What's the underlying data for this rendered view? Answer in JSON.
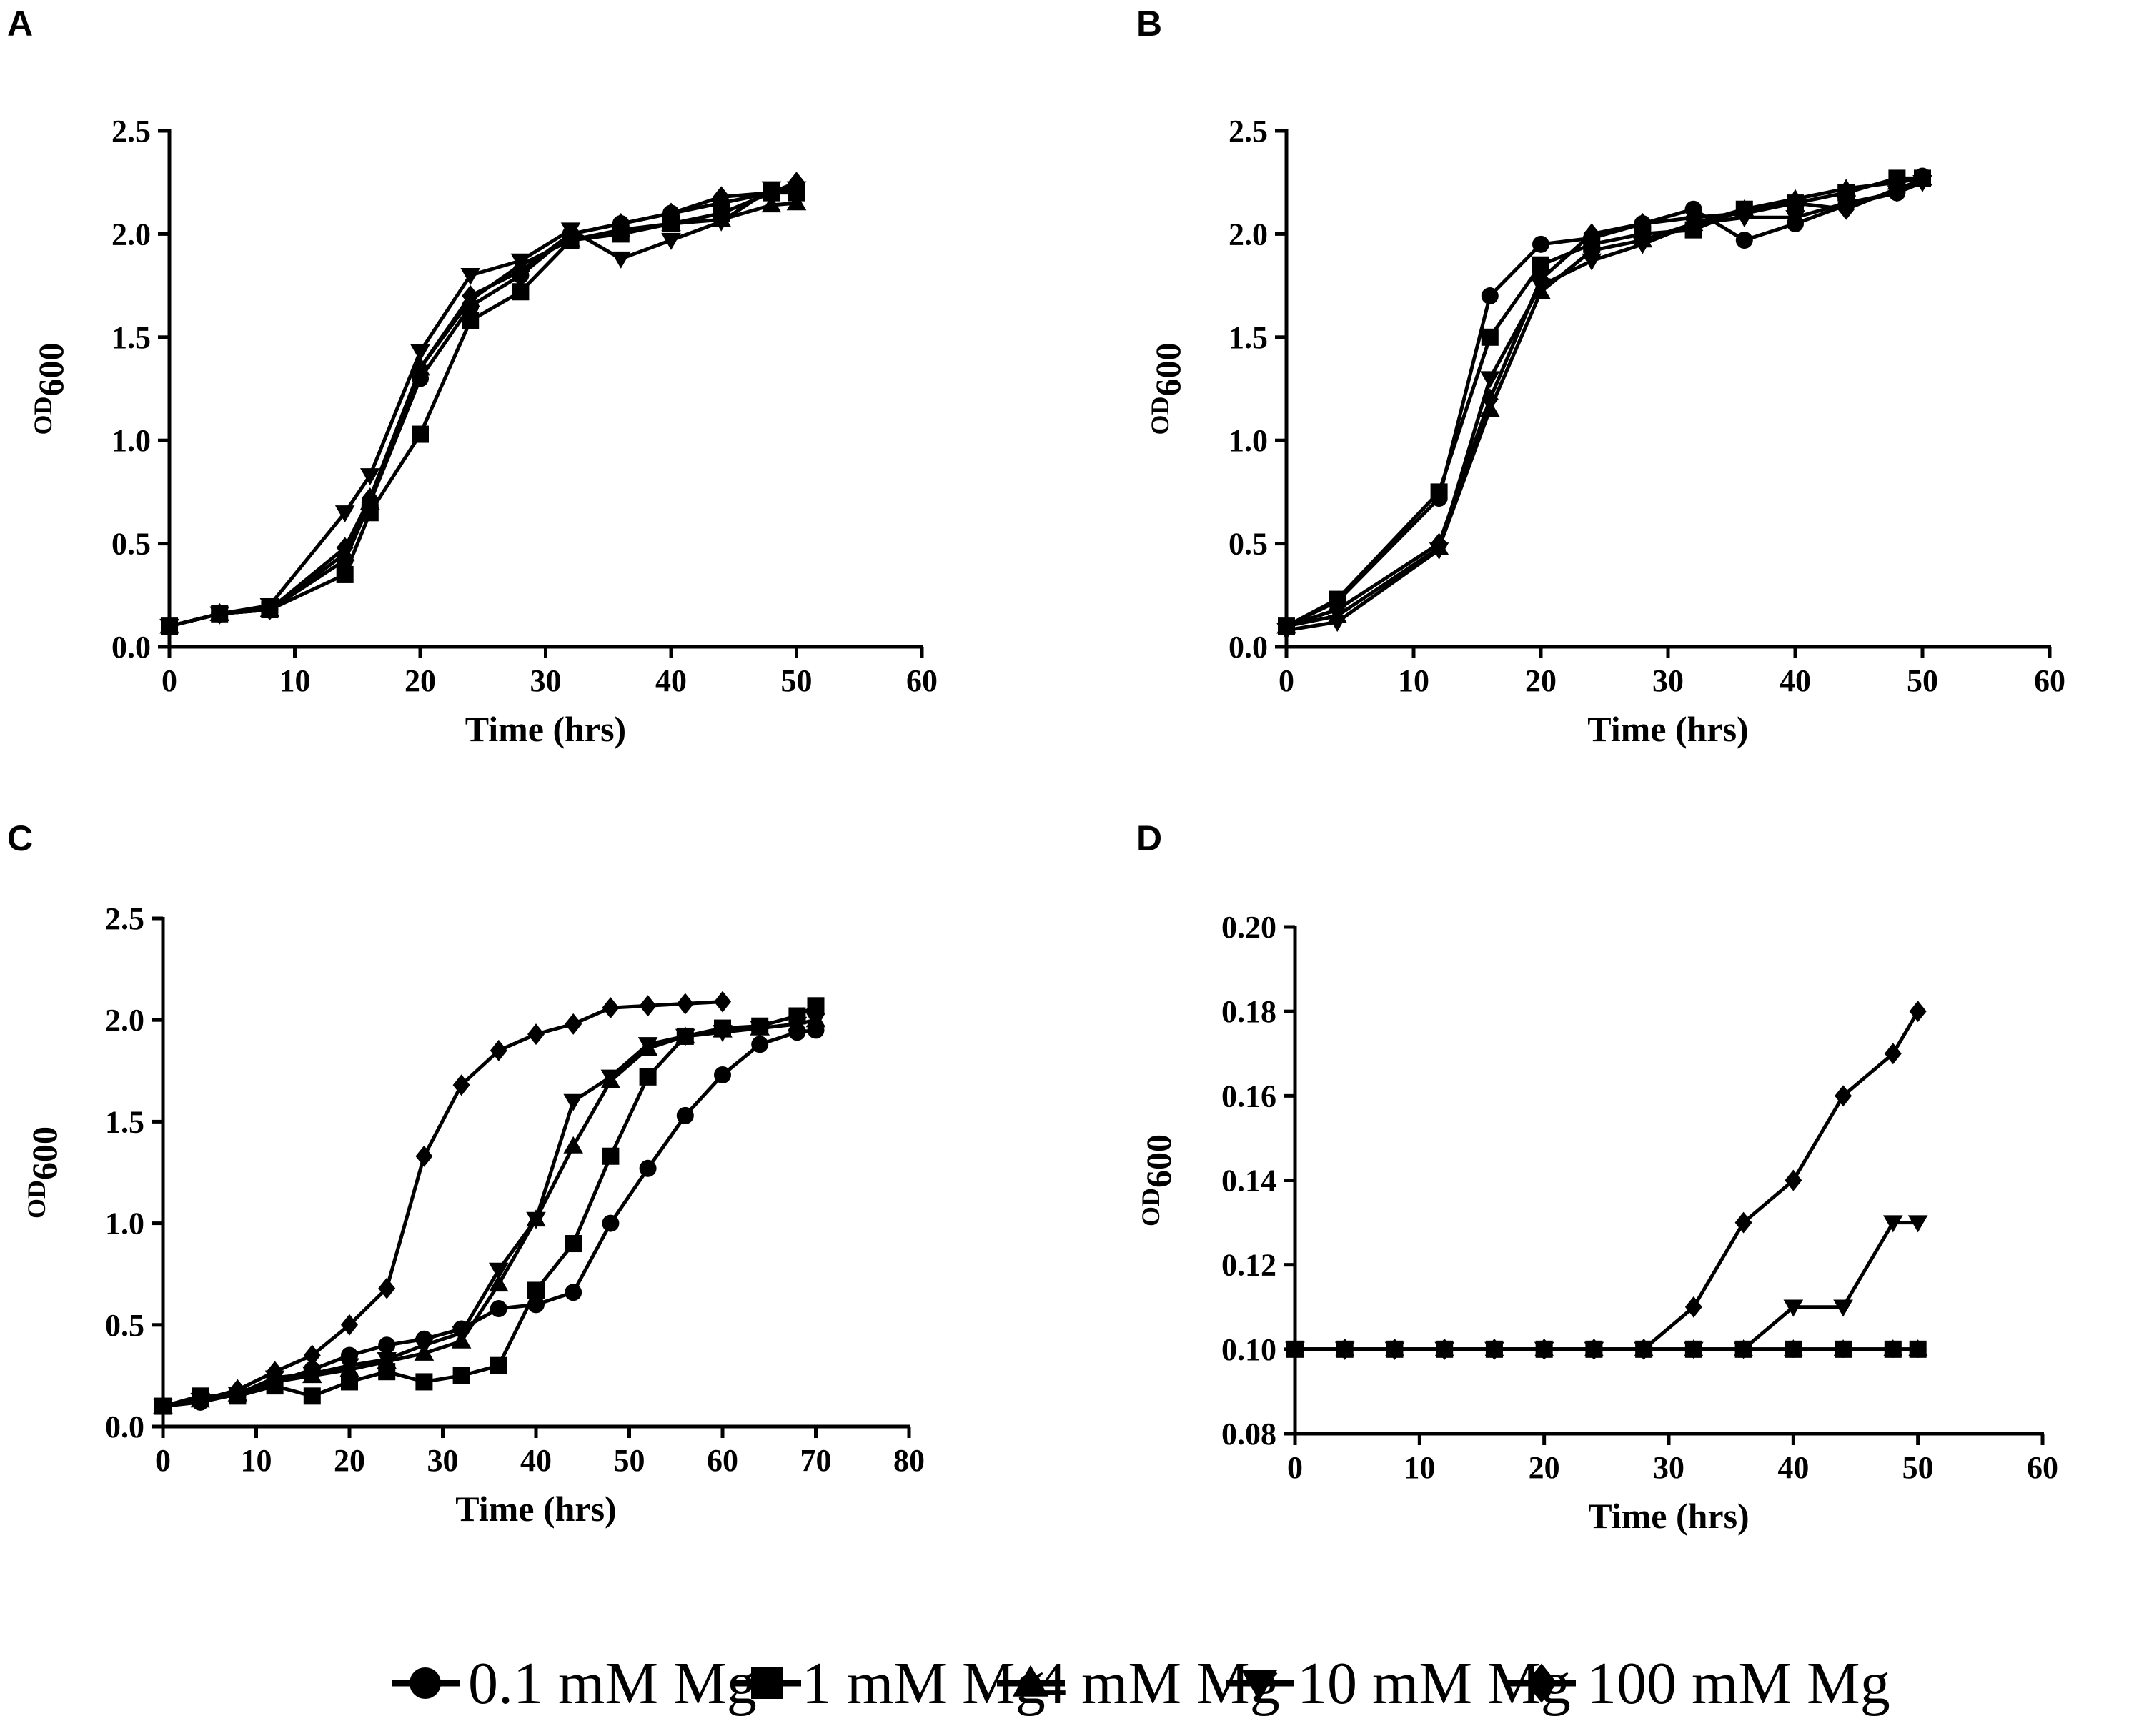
{
  "legend": [
    {
      "label": "0.1 mM Mg",
      "marker": "circle"
    },
    {
      "label": "1 mM Mg",
      "marker": "square"
    },
    {
      "label": "4 mM Mg",
      "marker": "triangle-up"
    },
    {
      "label": "10 mM Mg",
      "marker": "triangle-down"
    },
    {
      "label": "100 mM Mg",
      "marker": "diamond"
    }
  ],
  "chart_data": [
    {
      "panel": "A",
      "type": "line",
      "xlabel": "Time (hrs)",
      "ylabel_main": "OD",
      "ylabel_sub": "600",
      "xlim": [
        0,
        60
      ],
      "ylim": [
        0,
        2.5
      ],
      "xticks": [
        "0",
        "10",
        "20",
        "30",
        "40",
        "50",
        "60"
      ],
      "yticks": [
        "0.0",
        "0.5",
        "1.0",
        "1.5",
        "2.0",
        "2.5"
      ],
      "series": [
        {
          "name": "0.1 mM Mg",
          "marker": "circle",
          "x": [
            0,
            4,
            8,
            14,
            16,
            20,
            24,
            28,
            32,
            36,
            40,
            44,
            48,
            50
          ],
          "y": [
            0.1,
            0.16,
            0.18,
            0.42,
            0.7,
            1.3,
            1.65,
            1.8,
            2.0,
            2.05,
            2.1,
            2.15,
            2.2,
            2.22
          ]
        },
        {
          "name": "1 mM Mg",
          "marker": "square",
          "x": [
            0,
            4,
            8,
            14,
            16,
            20,
            24,
            28,
            32,
            36,
            40,
            44,
            48,
            50
          ],
          "y": [
            0.1,
            0.16,
            0.18,
            0.35,
            0.65,
            1.03,
            1.58,
            1.72,
            1.97,
            2.0,
            2.05,
            2.1,
            2.2,
            2.2
          ]
        },
        {
          "name": "4 mM Mg",
          "marker": "triangle-up",
          "x": [
            0,
            4,
            8,
            14,
            16,
            20,
            24,
            28,
            32,
            36,
            40,
            44,
            48,
            50
          ],
          "y": [
            0.1,
            0.16,
            0.18,
            0.45,
            0.7,
            1.35,
            1.68,
            1.85,
            1.97,
            2.02,
            2.05,
            2.07,
            2.14,
            2.15
          ]
        },
        {
          "name": "10 mM Mg",
          "marker": "triangle-down",
          "x": [
            0,
            4,
            8,
            14,
            16,
            20,
            24,
            28,
            32,
            36,
            40,
            44,
            48,
            50
          ],
          "y": [
            0.1,
            0.16,
            0.2,
            0.65,
            0.83,
            1.43,
            1.8,
            1.87,
            2.02,
            1.88,
            1.97,
            2.06,
            2.22,
            2.22
          ]
        },
        {
          "name": "100 mM Mg",
          "marker": "diamond",
          "x": [
            0,
            4,
            8,
            14,
            16,
            20,
            24,
            28,
            32,
            36,
            40,
            44,
            48,
            50
          ],
          "y": [
            0.1,
            0.16,
            0.18,
            0.48,
            0.72,
            1.35,
            1.7,
            1.82,
            2.0,
            2.05,
            2.1,
            2.18,
            2.2,
            2.25
          ]
        }
      ]
    },
    {
      "panel": "B",
      "type": "line",
      "xlabel": "Time (hrs)",
      "ylabel_main": "OD",
      "ylabel_sub": "600",
      "xlim": [
        0,
        60
      ],
      "ylim": [
        0,
        2.5
      ],
      "xticks": [
        "0",
        "10",
        "20",
        "30",
        "40",
        "50",
        "60"
      ],
      "yticks": [
        "0.0",
        "0.5",
        "1.0",
        "1.5",
        "2.0",
        "2.5"
      ],
      "series": [
        {
          "name": "0.1 mM Mg",
          "marker": "circle",
          "x": [
            0,
            4,
            12,
            16,
            20,
            24,
            28,
            32,
            36,
            40,
            44,
            48,
            50
          ],
          "y": [
            0.1,
            0.22,
            0.72,
            1.7,
            1.95,
            1.98,
            2.05,
            2.12,
            1.97,
            2.05,
            2.14,
            2.2,
            2.28
          ]
        },
        {
          "name": "1 mM Mg",
          "marker": "square",
          "x": [
            0,
            4,
            12,
            16,
            20,
            24,
            28,
            32,
            36,
            40,
            44,
            48,
            50
          ],
          "y": [
            0.1,
            0.23,
            0.75,
            1.5,
            1.85,
            1.95,
            2.0,
            2.02,
            2.12,
            2.15,
            2.2,
            2.27,
            2.27
          ]
        },
        {
          "name": "4 mM Mg",
          "marker": "triangle-up",
          "x": [
            0,
            4,
            12,
            16,
            20,
            24,
            28,
            32,
            36,
            40,
            44,
            48,
            50
          ],
          "y": [
            0.1,
            0.15,
            0.48,
            1.15,
            1.72,
            1.92,
            1.97,
            2.05,
            2.12,
            2.17,
            2.22,
            2.25,
            2.27
          ]
        },
        {
          "name": "10 mM Mg",
          "marker": "triangle-down",
          "x": [
            0,
            4,
            12,
            16,
            20,
            24,
            28,
            32,
            36,
            40,
            44,
            48,
            50
          ],
          "y": [
            0.08,
            0.12,
            0.47,
            1.3,
            1.75,
            1.87,
            1.95,
            2.05,
            2.08,
            2.08,
            2.15,
            2.2,
            2.25
          ]
        },
        {
          "name": "100 mM Mg",
          "marker": "diamond",
          "x": [
            0,
            4,
            12,
            16,
            20,
            24,
            28,
            32,
            36,
            40,
            44,
            48,
            50
          ],
          "y": [
            0.1,
            0.18,
            0.5,
            1.2,
            1.78,
            2.0,
            2.05,
            2.08,
            2.1,
            2.15,
            2.12,
            2.22,
            2.26
          ]
        }
      ]
    },
    {
      "panel": "C",
      "type": "line",
      "xlabel": "Time (hrs)",
      "ylabel_main": "OD",
      "ylabel_sub": "600",
      "xlim": [
        0,
        80
      ],
      "ylim": [
        0,
        2.5
      ],
      "xticks": [
        "0",
        "10",
        "20",
        "30",
        "40",
        "50",
        "60",
        "70",
        "80"
      ],
      "yticks": [
        "0.0",
        "0.5",
        "1.0",
        "1.5",
        "2.0",
        "2.5"
      ],
      "series": [
        {
          "name": "0.1 mM Mg",
          "marker": "circle",
          "x": [
            0,
            4,
            8,
            12,
            16,
            20,
            24,
            28,
            32,
            36,
            40,
            44,
            48,
            52,
            56,
            60,
            64,
            68,
            70
          ],
          "y": [
            0.1,
            0.12,
            0.16,
            0.22,
            0.28,
            0.35,
            0.4,
            0.43,
            0.48,
            0.58,
            0.6,
            0.66,
            1.0,
            1.27,
            1.53,
            1.73,
            1.88,
            1.94,
            1.95
          ]
        },
        {
          "name": "1 mM Mg",
          "marker": "square",
          "x": [
            0,
            4,
            8,
            12,
            16,
            20,
            24,
            28,
            32,
            36,
            40,
            44,
            48,
            52,
            56,
            60,
            64,
            68,
            70
          ],
          "y": [
            0.1,
            0.15,
            0.15,
            0.2,
            0.15,
            0.22,
            0.27,
            0.22,
            0.25,
            0.3,
            0.67,
            0.9,
            1.33,
            1.72,
            1.92,
            1.96,
            1.97,
            2.02,
            2.07
          ]
        },
        {
          "name": "4 mM Mg",
          "marker": "triangle-up",
          "x": [
            0,
            4,
            8,
            12,
            16,
            20,
            24,
            28,
            32,
            36,
            40,
            44,
            48,
            52,
            56,
            60,
            64,
            68,
            70
          ],
          "y": [
            0.1,
            0.13,
            0.16,
            0.22,
            0.25,
            0.28,
            0.32,
            0.36,
            0.42,
            0.7,
            1.02,
            1.38,
            1.7,
            1.86,
            1.92,
            1.95,
            1.96,
            1.98,
            2.0
          ]
        },
        {
          "name": "10 mM Mg",
          "marker": "triangle-down",
          "x": [
            0,
            4,
            8,
            12,
            16,
            20,
            24,
            28,
            32,
            36,
            40,
            44,
            48,
            52,
            56,
            60,
            64,
            68,
            70
          ],
          "y": [
            0.1,
            0.13,
            0.16,
            0.24,
            0.26,
            0.3,
            0.33,
            0.4,
            0.46,
            0.77,
            1.02,
            1.6,
            1.72,
            1.88,
            1.92,
            1.94,
            1.96,
            1.98,
            2.0
          ]
        },
        {
          "name": "100 mM Mg",
          "marker": "diamond",
          "x": [
            0,
            4,
            8,
            12,
            16,
            20,
            24,
            28,
            32,
            36,
            40,
            44,
            48,
            52,
            56,
            60
          ],
          "y": [
            0.1,
            0.13,
            0.18,
            0.27,
            0.35,
            0.5,
            0.68,
            1.33,
            1.68,
            1.85,
            1.93,
            1.98,
            2.06,
            2.07,
            2.08,
            2.09
          ]
        }
      ]
    },
    {
      "panel": "D",
      "type": "line",
      "xlabel": "Time (hrs)",
      "ylabel_main": "OD",
      "ylabel_sub": "600",
      "xlim": [
        0,
        60
      ],
      "ylim": [
        0.08,
        0.2
      ],
      "xticks": [
        "0",
        "10",
        "20",
        "30",
        "40",
        "50",
        "60"
      ],
      "yticks": [
        "0.08",
        "0.10",
        "0.12",
        "0.14",
        "0.16",
        "0.18",
        "0.20"
      ],
      "series": [
        {
          "name": "0.1 mM Mg",
          "marker": "circle",
          "x": [
            0,
            4,
            8,
            12,
            16,
            20,
            24,
            28,
            32,
            36,
            40,
            44,
            48,
            50
          ],
          "y": [
            0.1,
            0.1,
            0.1,
            0.1,
            0.1,
            0.1,
            0.1,
            0.1,
            0.1,
            0.1,
            0.1,
            0.1,
            0.1,
            0.1
          ]
        },
        {
          "name": "1 mM Mg",
          "marker": "square",
          "x": [
            0,
            4,
            8,
            12,
            16,
            20,
            24,
            28,
            32,
            36,
            40,
            44,
            48,
            50
          ],
          "y": [
            0.1,
            0.1,
            0.1,
            0.1,
            0.1,
            0.1,
            0.1,
            0.1,
            0.1,
            0.1,
            0.1,
            0.1,
            0.1,
            0.1
          ]
        },
        {
          "name": "4 mM Mg",
          "marker": "triangle-up",
          "x": [
            0,
            4,
            8,
            12,
            16,
            20,
            24,
            28,
            32,
            36,
            40,
            44,
            48,
            50
          ],
          "y": [
            0.1,
            0.1,
            0.1,
            0.1,
            0.1,
            0.1,
            0.1,
            0.1,
            0.1,
            0.1,
            0.1,
            0.1,
            0.1,
            0.1
          ]
        },
        {
          "name": "10 mM Mg",
          "marker": "triangle-down",
          "x": [
            0,
            4,
            8,
            12,
            16,
            20,
            24,
            28,
            32,
            36,
            40,
            44,
            48,
            50
          ],
          "y": [
            0.1,
            0.1,
            0.1,
            0.1,
            0.1,
            0.1,
            0.1,
            0.1,
            0.1,
            0.1,
            0.11,
            0.11,
            0.13,
            0.13
          ]
        },
        {
          "name": "100 mM Mg",
          "marker": "diamond",
          "x": [
            0,
            4,
            8,
            12,
            16,
            20,
            24,
            28,
            32,
            36,
            40,
            44,
            48,
            50
          ],
          "y": [
            0.1,
            0.1,
            0.1,
            0.1,
            0.1,
            0.1,
            0.1,
            0.1,
            0.11,
            0.13,
            0.14,
            0.16,
            0.17,
            0.18
          ]
        }
      ]
    }
  ]
}
